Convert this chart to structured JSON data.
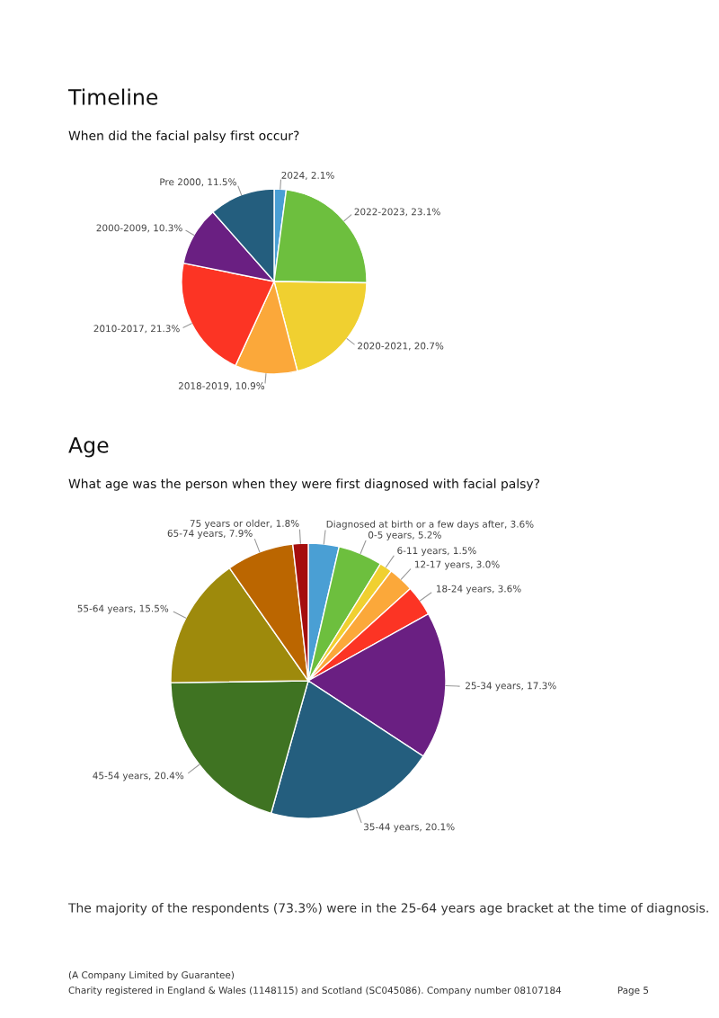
{
  "chart_data": [
    {
      "type": "pie",
      "title": "Timeline",
      "subtitle": "When did the facial palsy first occur?",
      "categories": [
        "2024",
        "2022-2023",
        "2020-2021",
        "2018-2019",
        "2010-2017",
        "2000-2009",
        "Pre 2000"
      ],
      "values": [
        2.1,
        23.1,
        20.7,
        10.9,
        21.3,
        10.3,
        11.5
      ],
      "value_labels": [
        "2.1%",
        "23.1%",
        "20.7%",
        "10.9%",
        "21.3%",
        "10.3%",
        "11.5%"
      ],
      "colors": [
        "#4a9fd4",
        "#6dbf3e",
        "#f0d030",
        "#fba83a",
        "#fc3424",
        "#6a1f82",
        "#245e7e"
      ]
    },
    {
      "type": "pie",
      "title": "Age",
      "subtitle": "What age was the person when they were first diagnosed with facial palsy?",
      "categories": [
        "Diagnosed at birth or a few days after",
        "0-5 years",
        "6-11 years",
        "12-17 years",
        "18-24 years",
        "25-34 years",
        "35-44 years",
        "45-54 years",
        "55-64 years",
        "65-74 years",
        "75 years or older"
      ],
      "values": [
        3.6,
        5.2,
        1.5,
        3.0,
        3.6,
        17.3,
        20.1,
        20.4,
        15.5,
        7.9,
        1.8
      ],
      "value_labels": [
        "3.6%",
        "5.2%",
        "1.5%",
        "3.0%",
        "3.6%",
        "17.3%",
        "20.1%",
        "20.4%",
        "15.5%",
        "7.9%",
        "1.8%"
      ],
      "colors": [
        "#4a9fd4",
        "#6dbf3e",
        "#f0d030",
        "#fba83a",
        "#fc3424",
        "#6a1f82",
        "#245e7e",
        "#3f7322",
        "#9e8a0c",
        "#bb6600",
        "#a50e0e"
      ],
      "annotations": [
        "The majority of the respondents (73.3%) were in the 25-64 years age bracket at the time of diagnosis.",
        "(A Company Limited by Guarantee)",
        "Charity registered in England & Wales (1148115) and Scotland (SC045086). Company number 08107184",
        "Page 5"
      ]
    }
  ]
}
